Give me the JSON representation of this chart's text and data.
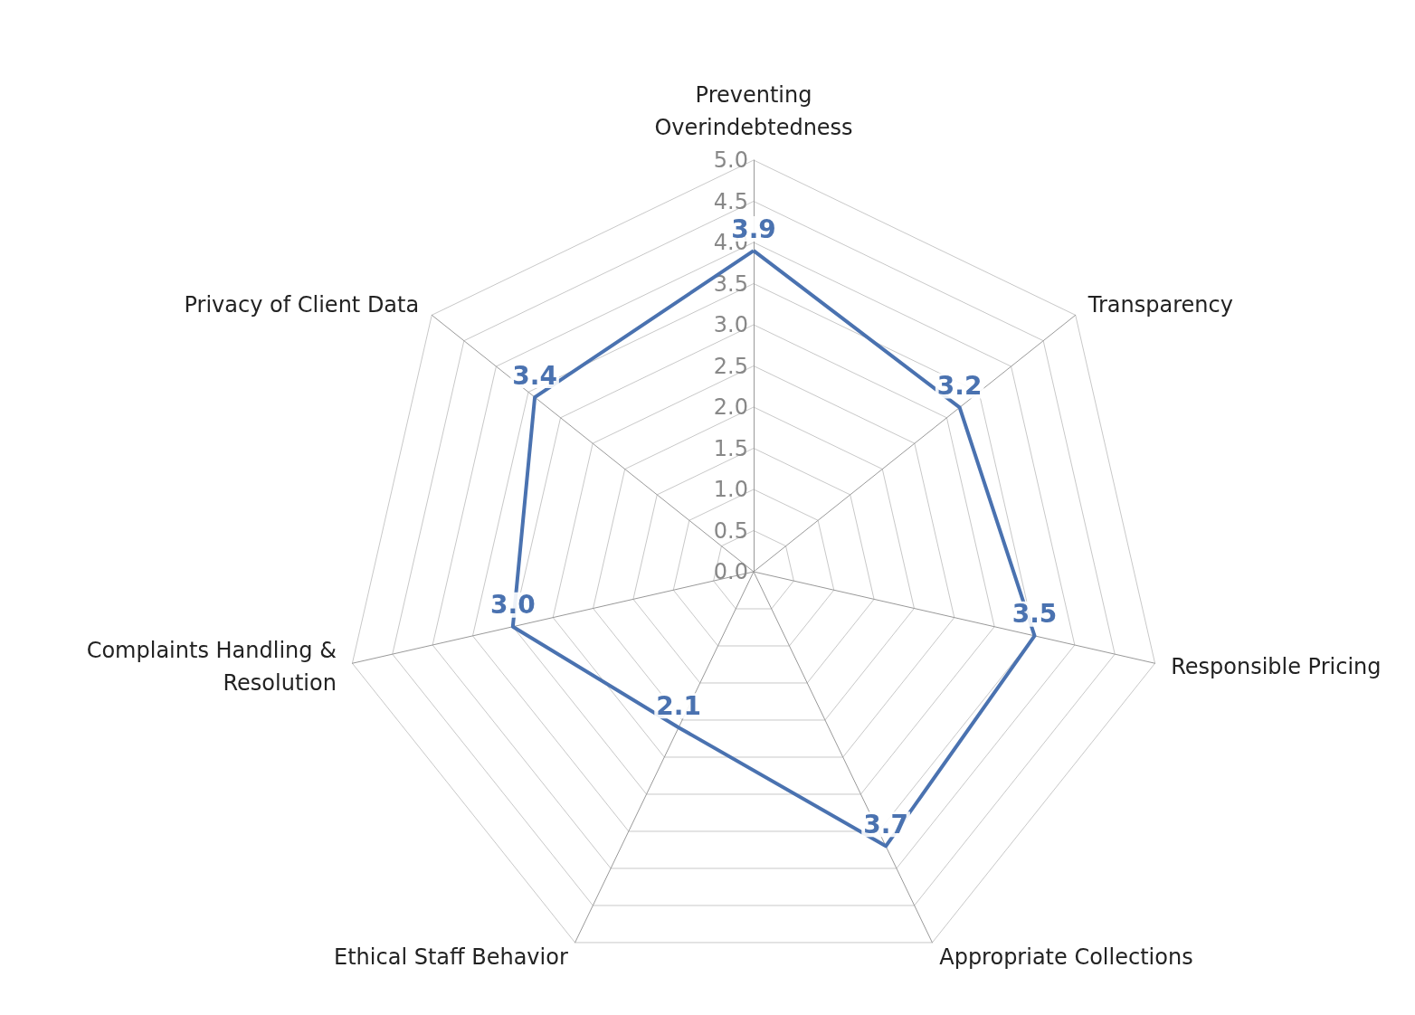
{
  "chart_data": {
    "type": "radar",
    "categories": [
      "Preventing Overindebtedness",
      "Transparency",
      "Responsible Pricing",
      "Appropriate Collections",
      "Ethical Staff Behavior",
      "Complaints Handling & Resolution",
      "Privacy of Client Data"
    ],
    "series": [
      {
        "color": "#4a72b0",
        "values": [
          3.9,
          3.2,
          3.5,
          3.7,
          2.1,
          3.0,
          3.4
        ]
      }
    ],
    "ylim": [
      0,
      5
    ],
    "yticks": [
      {
        "value": 0,
        "label": "0.0"
      },
      {
        "value": 0.5,
        "label": "0.5"
      },
      {
        "value": 1,
        "label": "1.0"
      },
      {
        "value": 1.5,
        "label": "1.5"
      },
      {
        "value": 2,
        "label": "2.0"
      },
      {
        "value": 2.5,
        "label": "2.5"
      },
      {
        "value": 3,
        "label": "3.0"
      },
      {
        "value": 3.5,
        "label": "3.5"
      },
      {
        "value": 4,
        "label": "4.0"
      },
      {
        "value": 4.5,
        "label": "4.5"
      },
      {
        "value": 5,
        "label": "5.0"
      }
    ],
    "value_labels": [
      "3.9",
      "3.2",
      "3.5",
      "3.7",
      "2.1",
      "3.0",
      "3.4"
    ],
    "marker": "none",
    "line_style": "solid",
    "grid": true
  }
}
